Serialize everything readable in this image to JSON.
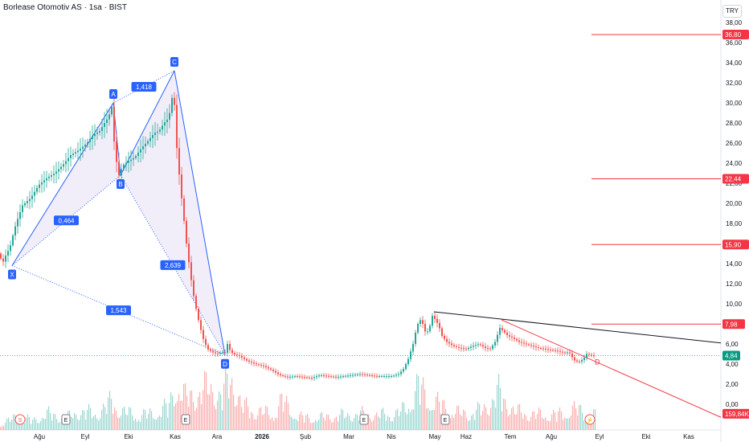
{
  "header": {
    "title": "Borlease Otomotiv AS · 1sa · BIST",
    "currency": "TRY"
  },
  "colors": {
    "up": "#26a69a",
    "down": "#ef5350",
    "pattern": "#2962ff",
    "pattern_fill": "#ede7f6",
    "level": "#f23645",
    "trend": "#131722",
    "price_label": "#089981",
    "axis_text": "#131722",
    "axis_line": "#e0e3eb"
  },
  "chart_data": {
    "type": "candlestick",
    "ylim": [
      -1,
      39
    ],
    "yticks": [
      "38,00",
      "36,00",
      "34,00",
      "32,00",
      "30,00",
      "28,00",
      "26,00",
      "24,00",
      "22,00",
      "20,00",
      "18,00",
      "16,00",
      "14,00",
      "12,00",
      "10,00",
      "8,00",
      "6,00",
      "4,00",
      "2,00",
      "0,00"
    ],
    "ytick_values": [
      38,
      36,
      34,
      32,
      30,
      28,
      26,
      24,
      22,
      20,
      18,
      16,
      14,
      12,
      10,
      8,
      6,
      4,
      2,
      0
    ],
    "xticks": [
      "Ağu",
      "Eyl",
      "Eki",
      "Kas",
      "Ara",
      "2026",
      "Şub",
      "Mar",
      "Nis",
      "May",
      "Haz",
      "Tem",
      "Ağu",
      "Eyl",
      "Eki",
      "Kas"
    ],
    "xtick_bold": [
      "2026"
    ],
    "price_series": [
      [
        0,
        15.0
      ],
      [
        3,
        14.5
      ],
      [
        6,
        14.2
      ],
      [
        10,
        15.0
      ],
      [
        14,
        15.5
      ],
      [
        18,
        16.8
      ],
      [
        22,
        18.0
      ],
      [
        30,
        19.8
      ],
      [
        40,
        20.5
      ],
      [
        50,
        21.8
      ],
      [
        60,
        22.5
      ],
      [
        70,
        23.0
      ],
      [
        80,
        23.8
      ],
      [
        90,
        24.8
      ],
      [
        100,
        25.3
      ],
      [
        110,
        26.0
      ],
      [
        118,
        26.8
      ],
      [
        126,
        27.2
      ],
      [
        132,
        28.0
      ],
      [
        137,
        28.6
      ],
      [
        141,
        29.6
      ],
      [
        145,
        25.0
      ],
      [
        150,
        22.8
      ],
      [
        155,
        23.8
      ],
      [
        162,
        24.2
      ],
      [
        170,
        24.6
      ],
      [
        178,
        25.5
      ],
      [
        186,
        26.2
      ],
      [
        194,
        27.0
      ],
      [
        200,
        27.2
      ],
      [
        206,
        28.0
      ],
      [
        212,
        28.5
      ],
      [
        216,
        30.5
      ],
      [
        219,
        29.8
      ],
      [
        222,
        25.5
      ],
      [
        226,
        22.0
      ],
      [
        230,
        19.0
      ],
      [
        234,
        16.0
      ],
      [
        238,
        13.5
      ],
      [
        242,
        11.2
      ],
      [
        246,
        9.5
      ],
      [
        250,
        8.0
      ],
      [
        255,
        6.5
      ],
      [
        260,
        5.5
      ],
      [
        266,
        5.2
      ],
      [
        272,
        5.0
      ],
      [
        278,
        5.2
      ],
      [
        282,
        5.1
      ],
      [
        285,
        6.0
      ],
      [
        288,
        5.4
      ],
      [
        292,
        5.0
      ],
      [
        300,
        4.8
      ],
      [
        310,
        4.3
      ],
      [
        320,
        4.0
      ],
      [
        330,
        3.8
      ],
      [
        340,
        3.4
      ],
      [
        350,
        2.9
      ],
      [
        360,
        2.7
      ],
      [
        370,
        2.8
      ],
      [
        380,
        2.7
      ],
      [
        390,
        2.6
      ],
      [
        400,
        2.9
      ],
      [
        410,
        2.8
      ],
      [
        420,
        2.7
      ],
      [
        430,
        2.8
      ],
      [
        440,
        2.9
      ],
      [
        450,
        3.0
      ],
      [
        460,
        2.9
      ],
      [
        470,
        2.8
      ],
      [
        480,
        2.8
      ],
      [
        490,
        2.8
      ],
      [
        498,
        3.0
      ],
      [
        504,
        3.5
      ],
      [
        510,
        4.5
      ],
      [
        516,
        6.0
      ],
      [
        520,
        7.5
      ],
      [
        524,
        8.5
      ],
      [
        528,
        8.0
      ],
      [
        532,
        7.0
      ],
      [
        536,
        7.5
      ],
      [
        540,
        8.8
      ],
      [
        544,
        8.4
      ],
      [
        548,
        7.8
      ],
      [
        552,
        6.8
      ],
      [
        558,
        6.2
      ],
      [
        566,
        5.8
      ],
      [
        574,
        5.6
      ],
      [
        582,
        5.5
      ],
      [
        590,
        5.8
      ],
      [
        598,
        6.0
      ],
      [
        606,
        5.6
      ],
      [
        612,
        5.5
      ],
      [
        618,
        6.2
      ],
      [
        624,
        7.6
      ],
      [
        628,
        7.3
      ],
      [
        634,
        6.8
      ],
      [
        640,
        6.6
      ],
      [
        648,
        6.2
      ],
      [
        656,
        6.0
      ],
      [
        664,
        5.8
      ],
      [
        672,
        5.6
      ],
      [
        680,
        5.5
      ],
      [
        688,
        5.4
      ],
      [
        696,
        5.3
      ],
      [
        704,
        5.1
      ],
      [
        710,
        5.2
      ],
      [
        716,
        4.4
      ],
      [
        722,
        4.2
      ],
      [
        728,
        4.5
      ],
      [
        732,
        5.0
      ],
      [
        736,
        4.9
      ],
      [
        740,
        4.84
      ]
    ],
    "volume_profile": [
      [
        0,
        0.1
      ],
      [
        20,
        0.25
      ],
      [
        40,
        0.18
      ],
      [
        60,
        0.3
      ],
      [
        80,
        0.22
      ],
      [
        100,
        0.35
      ],
      [
        120,
        0.3
      ],
      [
        140,
        0.55
      ],
      [
        150,
        0.35
      ],
      [
        170,
        0.28
      ],
      [
        190,
        0.3
      ],
      [
        210,
        0.45
      ],
      [
        218,
        0.85
      ],
      [
        230,
        0.6
      ],
      [
        245,
        0.7
      ],
      [
        260,
        0.8
      ],
      [
        275,
        0.65
      ],
      [
        288,
        1.0
      ],
      [
        300,
        0.45
      ],
      [
        320,
        0.35
      ],
      [
        340,
        0.3
      ],
      [
        350,
        0.55
      ],
      [
        370,
        0.25
      ],
      [
        390,
        0.22
      ],
      [
        410,
        0.25
      ],
      [
        430,
        0.28
      ],
      [
        450,
        0.3
      ],
      [
        470,
        0.28
      ],
      [
        490,
        0.3
      ],
      [
        505,
        0.4
      ],
      [
        520,
        0.85
      ],
      [
        530,
        0.6
      ],
      [
        545,
        0.5
      ],
      [
        560,
        0.35
      ],
      [
        580,
        0.3
      ],
      [
        600,
        0.38
      ],
      [
        620,
        0.7
      ],
      [
        640,
        0.35
      ],
      [
        660,
        0.3
      ],
      [
        680,
        0.28
      ],
      [
        700,
        0.3
      ],
      [
        715,
        0.4
      ],
      [
        730,
        0.3
      ],
      [
        740,
        0.28
      ]
    ],
    "harmonic_pattern": {
      "points": [
        {
          "label": "X",
          "t": 15,
          "price": 13.8
        },
        {
          "label": "A",
          "t": 141,
          "price": 30.0
        },
        {
          "label": "B",
          "t": 150,
          "price": 22.8
        },
        {
          "label": "C",
          "t": 217,
          "price": 33.2
        },
        {
          "label": "D",
          "t": 280,
          "price": 4.9
        }
      ],
      "ratios": [
        {
          "label": "1,418",
          "between": [
            "A",
            "C"
          ]
        },
        {
          "label": "0,464",
          "between": [
            "X",
            "B"
          ]
        },
        {
          "label": "2,639",
          "between": [
            "B",
            "D"
          ]
        },
        {
          "label": "1,543",
          "between": [
            "X",
            "D"
          ]
        }
      ]
    },
    "trendlines": [
      {
        "name": "resistance",
        "from": {
          "t": 540,
          "price": 9.2
        },
        "to": {
          "t": 897,
          "price": 6.1
        },
        "color": "trend"
      },
      {
        "name": "projection",
        "from": {
          "t": 624,
          "price": 8.4
        },
        "to": {
          "t": 897,
          "price": -1.3
        },
        "color": "level"
      }
    ],
    "target_levels": [
      {
        "label": "36,80",
        "price": 36.8,
        "start": 736
      },
      {
        "label": "22,44",
        "price": 22.44,
        "start": 736
      },
      {
        "label": "15,90",
        "price": 15.9,
        "start": 736
      },
      {
        "label": "7,98",
        "price": 7.98,
        "start": 736
      },
      {
        "label": "159,84K",
        "price": -0.95,
        "start": 897
      }
    ],
    "projection_label": {
      "text": "D",
      "t": 740,
      "price": 4.2
    },
    "last_price": {
      "label": "4,84",
      "price": 4.84
    },
    "events": [
      {
        "label": "S",
        "t": 25,
        "kind": "circle"
      },
      {
        "label": "E",
        "t": 82,
        "kind": "box"
      },
      {
        "label": "E",
        "t": 231,
        "kind": "box"
      },
      {
        "label": "E",
        "t": 453,
        "kind": "box"
      },
      {
        "label": "E",
        "t": 554,
        "kind": "box"
      },
      {
        "label": "⚡",
        "t": 734,
        "kind": "circle"
      }
    ]
  }
}
